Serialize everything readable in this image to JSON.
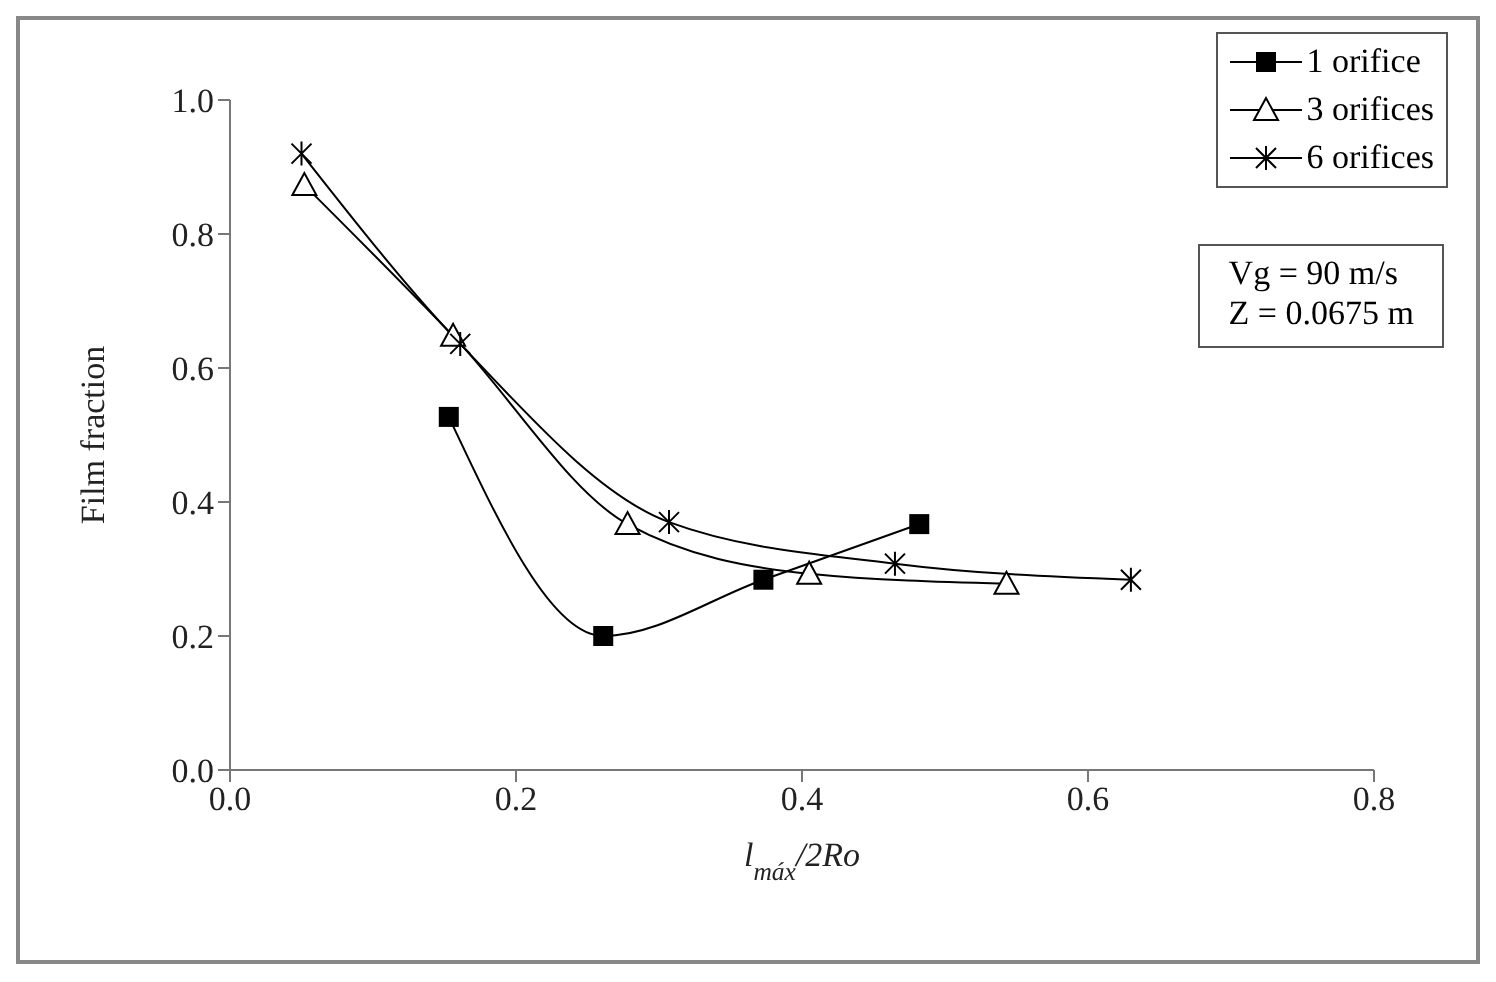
{
  "chart_data": {
    "type": "line",
    "xlabel": "l$_{máx}$/2Ro",
    "ylabel": "Film fraction",
    "xlim": [
      0,
      0.8
    ],
    "xticks": [
      {
        "value": 0,
        "label": "0.0"
      },
      0.2,
      0.4,
      0.6,
      0.8
    ],
    "ylim": [
      0,
      1
    ],
    "yticks": [
      {
        "value": 0,
        "label": "0.0"
      },
      0.2,
      0.4,
      0.6,
      0.8,
      {
        "value": 1,
        "label": "1.0"
      }
    ],
    "grid": false,
    "legend": "top right",
    "line_style": "solid",
    "annotations": [
      "Vg = 90 m/s",
      "Z = 0.0675 m"
    ],
    "series": [
      {
        "name": "1 orifice",
        "color": "#000000",
        "marker": "square",
        "x": [
          0.153,
          0.261,
          0.373,
          0.482
        ],
        "values": [
          0.527,
          0.2,
          0.284,
          0.367
        ]
      },
      {
        "name": "3 orifices",
        "color": "#000000",
        "marker": "triangle",
        "x": [
          0.052,
          0.156,
          0.278,
          0.405,
          0.543
        ],
        "values": [
          0.873,
          0.648,
          0.367,
          0.293,
          0.278
        ]
      },
      {
        "name": "6 orifices",
        "color": "#000000",
        "marker": "cross",
        "x": [
          0.05,
          0.161,
          0.307,
          0.465,
          0.63
        ],
        "values": [
          0.92,
          0.636,
          0.37,
          0.308,
          0.284
        ]
      }
    ]
  }
}
